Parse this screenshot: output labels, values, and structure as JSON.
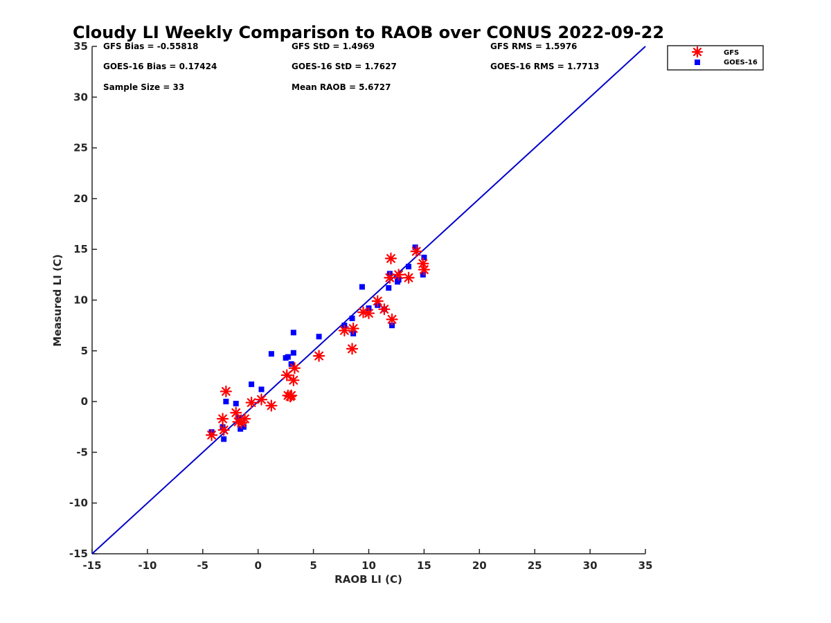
{
  "chart_data": {
    "type": "scatter",
    "title": "Cloudy LI Weekly Comparison to RAOB over CONUS 2022-09-22",
    "xlabel": "RAOB LI (C)",
    "ylabel": "Measured LI (C)",
    "xlim": [
      -15,
      35
    ],
    "ylim": [
      -15,
      35
    ],
    "xticks": [
      "-15",
      "-10",
      "-5",
      "0",
      "5",
      "10",
      "15",
      "20",
      "25",
      "30",
      "35"
    ],
    "yticks": [
      "-15",
      "-10",
      "-5",
      "0",
      "5",
      "10",
      "15",
      "20",
      "25",
      "30",
      "35"
    ],
    "grid": false,
    "legend_position": "outside top-right",
    "reference_line": {
      "x": [
        -15,
        35
      ],
      "y": [
        -15,
        35
      ],
      "color": "#0000cc"
    },
    "stats": {
      "gfs_bias": "GFS Bias = -0.55818",
      "gfs_std": "GFS StD = 1.4969",
      "gfs_rms": "GFS RMS = 1.5976",
      "goes_bias": "GOES-16 Bias = 0.17424",
      "goes_std": "GOES-16 StD = 1.7627",
      "goes_rms": "GOES-16 RMS = 1.7713",
      "sample_size": "Sample Size = 33",
      "mean_raob": "Mean RAOB = 5.6727"
    },
    "series": [
      {
        "name": "GFS",
        "marker": "asterisk",
        "color": "#ff0000",
        "x": [
          -4.2,
          -3.2,
          -3.1,
          -2.9,
          -2.0,
          -1.8,
          -1.5,
          -1.2,
          -0.6,
          0.3,
          1.2,
          2.6,
          2.7,
          2.9,
          3.0,
          3.2,
          3.3,
          5.5,
          7.8,
          8.5,
          8.6,
          9.5,
          10.0,
          10.8,
          11.4,
          11.9,
          12.0,
          12.1,
          12.7,
          13.6,
          14.3,
          14.9,
          15.0
        ],
        "y": [
          -3.3,
          -1.7,
          -2.8,
          1.0,
          -1.1,
          -2.0,
          -2.1,
          -1.7,
          -0.1,
          0.2,
          -0.4,
          2.6,
          0.6,
          0.5,
          0.6,
          2.1,
          3.3,
          4.5,
          7.0,
          5.2,
          7.2,
          8.8,
          8.7,
          9.9,
          9.1,
          12.2,
          14.1,
          8.1,
          12.5,
          12.2,
          14.8,
          13.6,
          13.0
        ]
      },
      {
        "name": "GOES-16",
        "marker": "square",
        "color": "#0000ff",
        "x": [
          -4.2,
          -3.2,
          -3.1,
          -2.9,
          -2.0,
          -1.7,
          -1.6,
          -1.3,
          -0.6,
          0.3,
          1.2,
          2.5,
          2.7,
          3.0,
          3.2,
          3.2,
          5.5,
          7.8,
          8.5,
          8.6,
          9.4,
          10.0,
          10.8,
          11.4,
          11.8,
          11.9,
          12.1,
          12.6,
          12.7,
          13.6,
          14.2,
          14.9,
          15.0
        ],
        "y": [
          -3.0,
          -2.5,
          -3.7,
          0.0,
          -0.2,
          -1.6,
          -2.7,
          -2.5,
          1.7,
          1.2,
          4.7,
          4.3,
          4.4,
          3.7,
          4.8,
          6.8,
          6.4,
          7.5,
          8.2,
          6.7,
          11.3,
          9.2,
          9.5,
          9.1,
          11.2,
          12.6,
          7.5,
          11.8,
          12.0,
          13.3,
          15.2,
          12.5,
          14.2
        ]
      }
    ]
  }
}
